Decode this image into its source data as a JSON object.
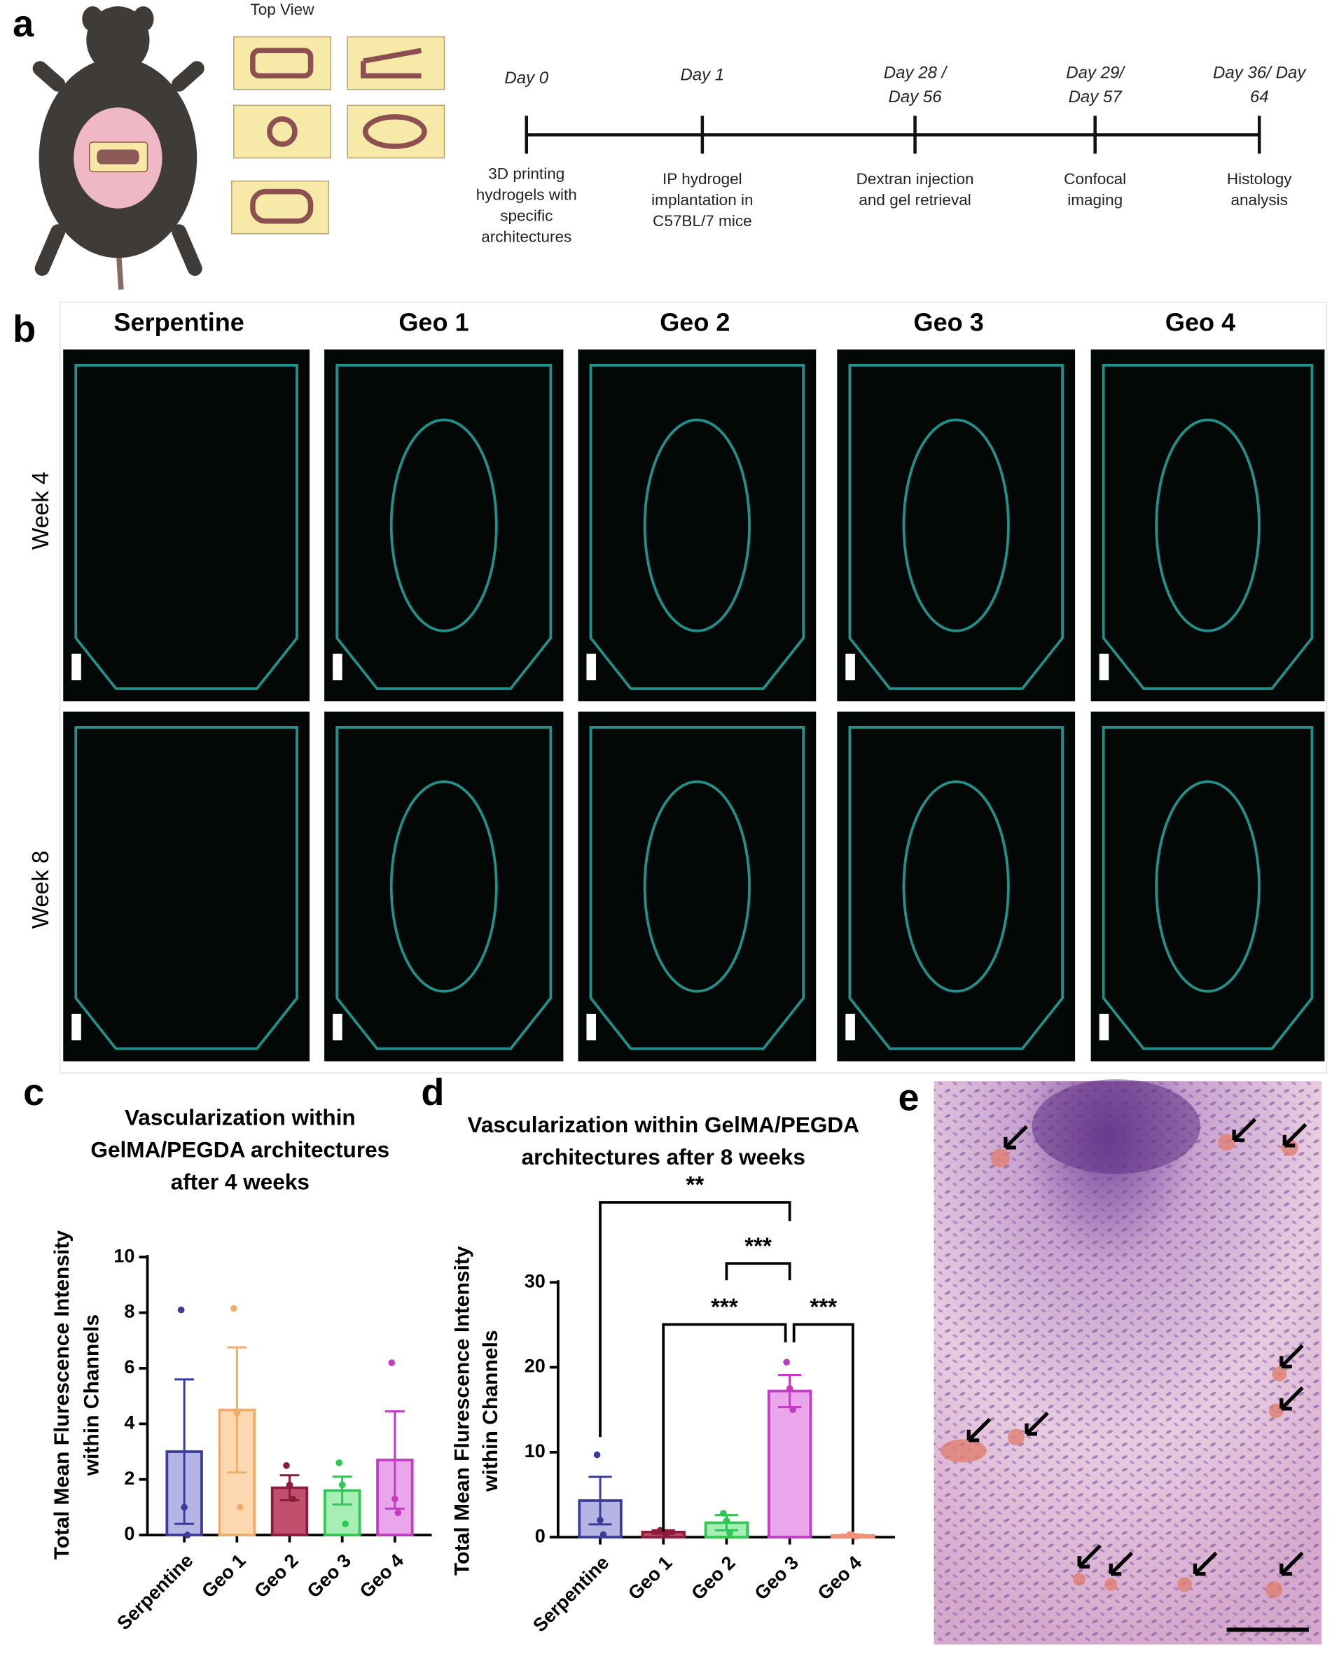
{
  "panel_labels": [
    "a",
    "b",
    "c",
    "d",
    "e"
  ],
  "panel_a": {
    "top_view": "Top View",
    "timeline": [
      {
        "day": [
          "Day 0"
        ],
        "event": [
          "3D printing",
          "hydrogels with",
          "specific",
          "architectures"
        ]
      },
      {
        "day": [
          "Day 1"
        ],
        "event": [
          "IP hydrogel",
          "implantation in",
          "C57BL/7 mice"
        ]
      },
      {
        "day": [
          "Day 28 /",
          "Day 56"
        ],
        "event": [
          "Dextran injection",
          "and gel retrieval"
        ]
      },
      {
        "day": [
          "Day 29/",
          "Day 57"
        ],
        "event": [
          "Confocal",
          "imaging"
        ]
      },
      {
        "day": [
          "Day 36/ Day",
          "64"
        ],
        "event": [
          "Histology",
          "analysis"
        ]
      }
    ]
  },
  "panel_b": {
    "columns": [
      "Serpentine",
      "Geo 1",
      "Geo 2",
      "Geo 3",
      "Geo 4"
    ],
    "rows": [
      "Week 4",
      "Week 8"
    ]
  },
  "chart_data": [
    {
      "type": "bar",
      "title": [
        "Vascularization within",
        "GelMA/PEGDA architectures",
        "after 4 weeks"
      ],
      "ylabel": [
        "Total Mean Flurescence Intensity",
        "within Channels"
      ],
      "categories": [
        "Serpentine",
        "Geo 1",
        "Geo 2",
        "Geo 3",
        "Geo 4"
      ],
      "values": [
        3.0,
        4.5,
        1.7,
        1.6,
        2.7
      ],
      "errors": [
        2.6,
        2.25,
        0.45,
        0.5,
        1.75
      ],
      "points": [
        [
          8.1,
          1.0,
          0
        ],
        [
          8.15,
          4.4,
          1.0
        ],
        [
          2.5,
          1.8,
          1.3
        ],
        [
          2.6,
          1.8,
          0.4
        ],
        [
          6.2,
          1.3,
          0.8
        ]
      ],
      "colors": [
        "#3b3b9c",
        "#f0ad6a",
        "#8c1c3c",
        "#2fc653",
        "#c23cc2"
      ],
      "fills": [
        "#b5b5e3",
        "#fcd8b0",
        "#c0506e",
        "#a6efb4",
        "#eaa6ea"
      ],
      "ylim": [
        0,
        10
      ],
      "yticks": [
        0,
        2,
        4,
        6,
        8,
        10
      ]
    },
    {
      "type": "bar",
      "title": [
        "Vascularization within GelMA/PEGDA",
        "architectures after 8 weeks"
      ],
      "ylabel": [
        "Total Mean Flurescence Intensity",
        "within Channels"
      ],
      "categories": [
        "Serpentine",
        "Geo 1",
        "Geo 2",
        "Geo 3",
        "Geo 4"
      ],
      "values": [
        4.3,
        0.6,
        1.7,
        17.2,
        0.2
      ],
      "errors": [
        2.8,
        0.2,
        0.9,
        1.9,
        0.1
      ],
      "points": [
        [
          9.7,
          2.0,
          0.3
        ],
        [
          0.8,
          0.6,
          0.4
        ],
        [
          2.8,
          1.9,
          0.5
        ],
        [
          20.6,
          17.5,
          15.0
        ],
        [
          0.3,
          0.2,
          0.1
        ]
      ],
      "colors": [
        "#3b3b9c",
        "#8c1c3c",
        "#2fc653",
        "#c23cc2",
        "#f0907a"
      ],
      "fills": [
        "#b5b5e3",
        "#c0506e",
        "#a6efb4",
        "#eaa6ea",
        "#f8c0b0"
      ],
      "ylim": [
        0,
        30
      ],
      "yticks": [
        0,
        10,
        20,
        30
      ],
      "significance": [
        {
          "between": [
            "Serpentine",
            "Geo 3"
          ],
          "label": "**"
        },
        {
          "between": [
            "Geo 2",
            "Geo 3"
          ],
          "label": "***"
        },
        {
          "between": [
            "Geo 1",
            "Geo 3"
          ],
          "label": "***"
        },
        {
          "between": [
            "Geo 3",
            "Geo 4"
          ],
          "label": "***"
        }
      ]
    }
  ]
}
